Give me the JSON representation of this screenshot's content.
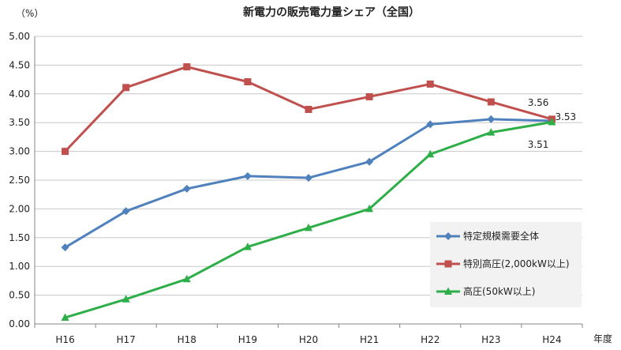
{
  "chart_data": {
    "type": "line",
    "title": "新電力の販売電力量シェア（全国）",
    "ylabel": "（%）",
    "xlabel": "年度",
    "categories": [
      "H16",
      "H17",
      "H18",
      "H19",
      "H20",
      "H21",
      "H22",
      "H23",
      "H24"
    ],
    "ylim": [
      0,
      5
    ],
    "yticks": [
      "0.00",
      "0.50",
      "1.00",
      "1.50",
      "2.00",
      "2.50",
      "3.00",
      "3.50",
      "4.00",
      "4.50",
      "5.00"
    ],
    "grid": true,
    "legend_position": "right",
    "series": [
      {
        "name": "特定規模需要全体",
        "color": "#4F81BD",
        "marker": "diamond",
        "values": [
          1.33,
          1.96,
          2.35,
          2.57,
          2.54,
          2.82,
          3.47,
          3.56,
          3.53
        ]
      },
      {
        "name": "特別高圧(2,000kW以上)",
        "color": "#C0504D",
        "marker": "square",
        "values": [
          3.0,
          4.11,
          4.47,
          4.21,
          3.73,
          3.95,
          4.17,
          3.86,
          3.56
        ]
      },
      {
        "name": "高圧(50kW以上)",
        "color": "#2EAE48",
        "marker": "triangle",
        "values": [
          0.11,
          0.43,
          0.78,
          1.34,
          1.67,
          2.0,
          2.95,
          3.33,
          3.51
        ]
      }
    ],
    "annotations": [
      "3.56",
      "3.53",
      "3.51"
    ]
  }
}
